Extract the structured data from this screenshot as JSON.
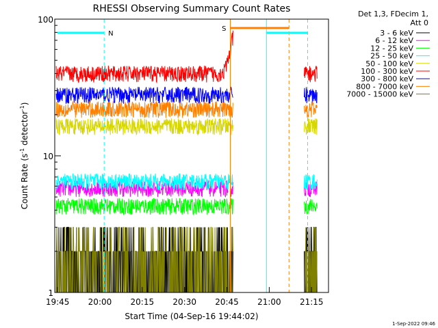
{
  "chart_data": {
    "type": "line",
    "title": "RHESSI Observing Summary Count Rates",
    "xlabel": "Start Time (04-Sep-16 19:44:02)",
    "ylabel_main": "Count Rate (s",
    "ylabel_sup1": "-1",
    "ylabel_mid": " detector",
    "ylabel_sup2": "-1",
    "ylabel_end": ")",
    "y_scale": "log",
    "ylim": [
      1,
      100
    ],
    "y_ticks": [
      {
        "value": 1,
        "label": "1"
      },
      {
        "value": 10,
        "label": "10"
      },
      {
        "value": 100,
        "label": "100"
      }
    ],
    "x_unit": "minutes since 19:44:02",
    "xlim": [
      0,
      97
    ],
    "x_ticks": [
      {
        "value": 1,
        "label": "19:45"
      },
      {
        "value": 16,
        "label": "20:00"
      },
      {
        "value": 31,
        "label": "20:15"
      },
      {
        "value": 46,
        "label": "20:30"
      },
      {
        "value": 61,
        "label": "20:45"
      },
      {
        "value": 76,
        "label": "21:00"
      },
      {
        "value": 91,
        "label": "21:15"
      }
    ],
    "legend_header": [
      "Det 1,3, FDecim 1,",
      "Att 0"
    ],
    "legend_position": "right",
    "series": [
      {
        "name": "3 - 6 keV",
        "color": "#000000",
        "level": 2.2
      },
      {
        "name": "6 - 12 keV",
        "color": "#ff00ff",
        "level": 5.8
      },
      {
        "name": "12 - 25 keV",
        "color": "#00ff00",
        "level": 4.3
      },
      {
        "name": "25 - 50 keV",
        "color": "#00ffff",
        "level": 6.5
      },
      {
        "name": "50 - 100 keV",
        "color": "#d6d600",
        "level": 16.5
      },
      {
        "name": "100 - 300 keV",
        "color": "#ff0000",
        "level": 40
      },
      {
        "name": "300 - 800 keV",
        "color": "#0000ff",
        "level": 28
      },
      {
        "name": "800 - 7000 keV",
        "color": "#ff8000",
        "level": 22
      },
      {
        "name": "7000 - 15000 keV",
        "color": "#808000",
        "level": 1.6
      }
    ],
    "data_gaps": [
      {
        "from": 63.2,
        "to": 88.4
      }
    ],
    "annotations": [
      {
        "label": "N",
        "color": "#00ffff",
        "x_start": 1,
        "x_end": 17.5
      },
      {
        "label": "S",
        "color": "#ff8000",
        "x_start": 62.2,
        "x_end": 83
      }
    ],
    "markers": [
      {
        "x": 17.5,
        "color": "#00ffff",
        "style": "dashed"
      },
      {
        "x": 62.2,
        "color": "#ff8000",
        "style": "solid"
      },
      {
        "x": 75,
        "color": "#00ffff",
        "style": "solid"
      },
      {
        "x": 83,
        "color": "#ff8000",
        "style": "dashed"
      },
      {
        "x": 89.6,
        "color": "#00ffff",
        "style": "dashed"
      }
    ],
    "saa_bar": {
      "color": "#00ffff",
      "x_start": 75,
      "x_end": 89.6
    }
  },
  "footer": {
    "timestamp": "1-Sep-2022 09:46"
  }
}
